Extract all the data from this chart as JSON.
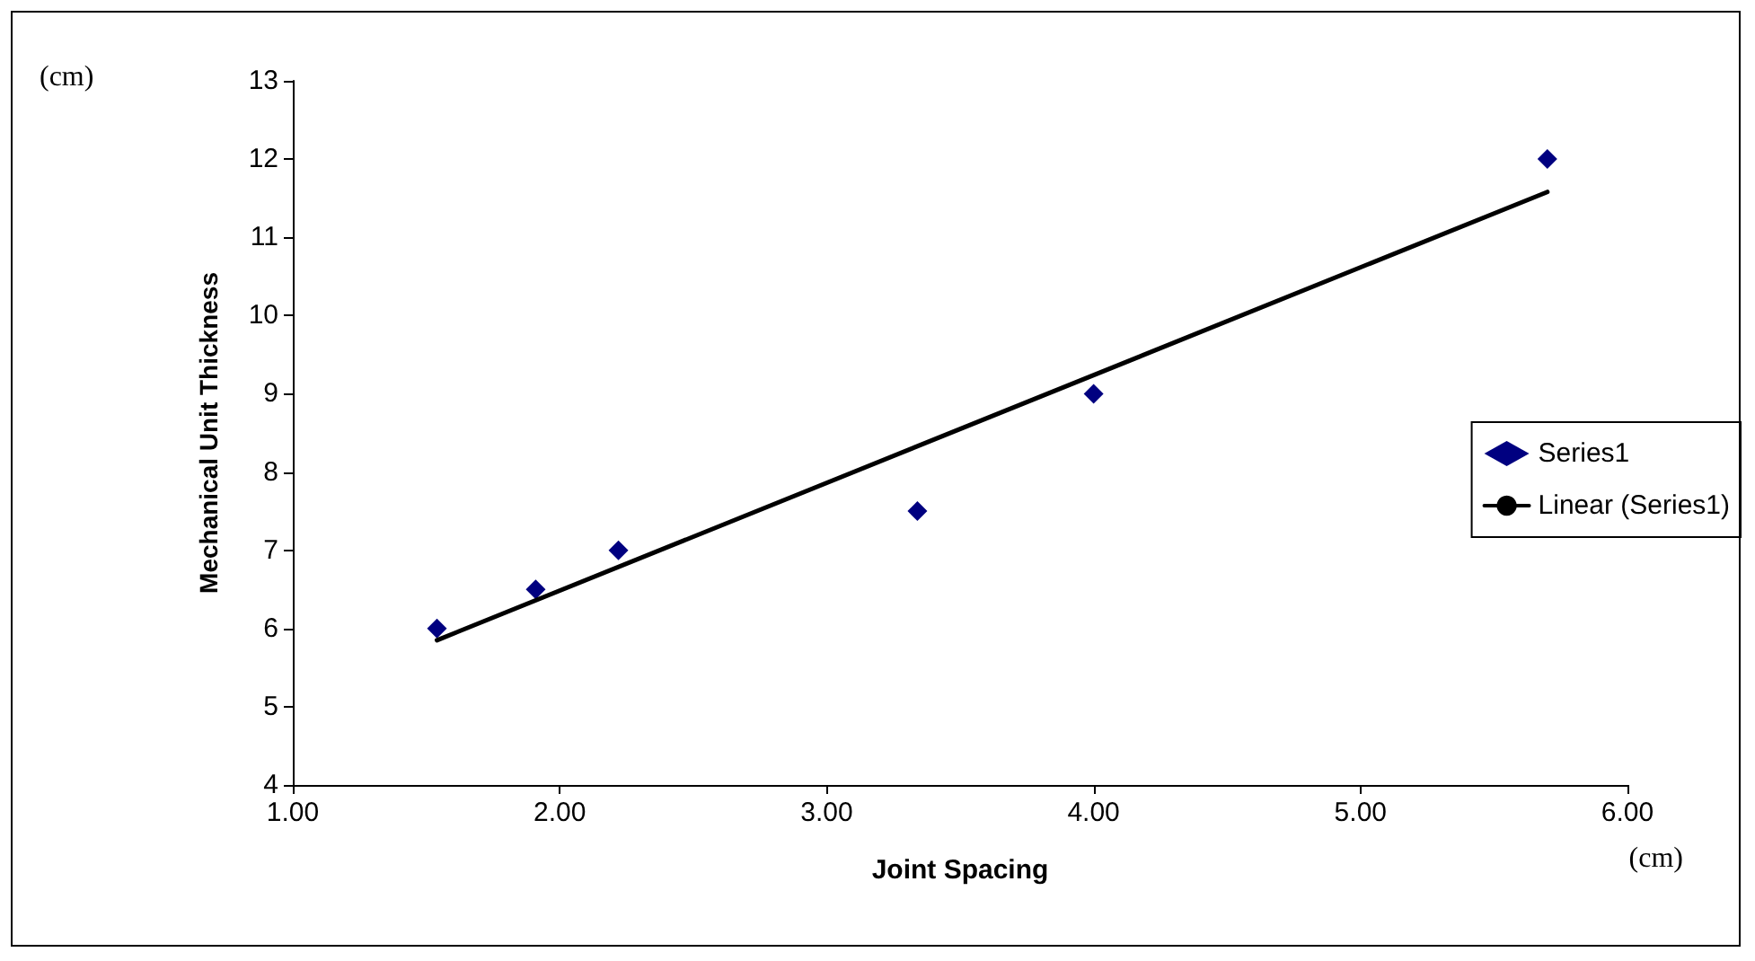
{
  "chart_data": {
    "type": "scatter",
    "xlabel": "Joint Spacing",
    "ylabel": "Mechanical Unit Thickness",
    "annotations": [
      "(cm)",
      "(cm)"
    ],
    "series": [
      {
        "name": "Series1",
        "color": "#000080",
        "marker": "diamond",
        "x": [
          1.54,
          1.91,
          2.22,
          3.34,
          4.0,
          5.7
        ],
        "values": [
          6.0,
          6.5,
          7.0,
          7.5,
          9.0,
          12.0
        ]
      },
      {
        "name": "Linear (Series1)",
        "type": "line",
        "color": "#000000",
        "marker": "none",
        "line_style": "solid",
        "x": [
          1.54,
          5.7
        ],
        "values": [
          5.85,
          11.58
        ]
      }
    ],
    "xlim": [
      1,
      6
    ],
    "xticks": [
      {
        "value": 1,
        "label": "1.00"
      },
      {
        "value": 2,
        "label": "2.00"
      },
      {
        "value": 3,
        "label": "3.00"
      },
      {
        "value": 4,
        "label": "4.00"
      },
      {
        "value": 5,
        "label": "5.00"
      },
      {
        "value": 6,
        "label": "6.00"
      }
    ],
    "ylim": [
      4,
      13
    ],
    "yticks": [
      4,
      5,
      6,
      7,
      8,
      9,
      10,
      11,
      12,
      13
    ],
    "grid": false,
    "legend": "right"
  }
}
